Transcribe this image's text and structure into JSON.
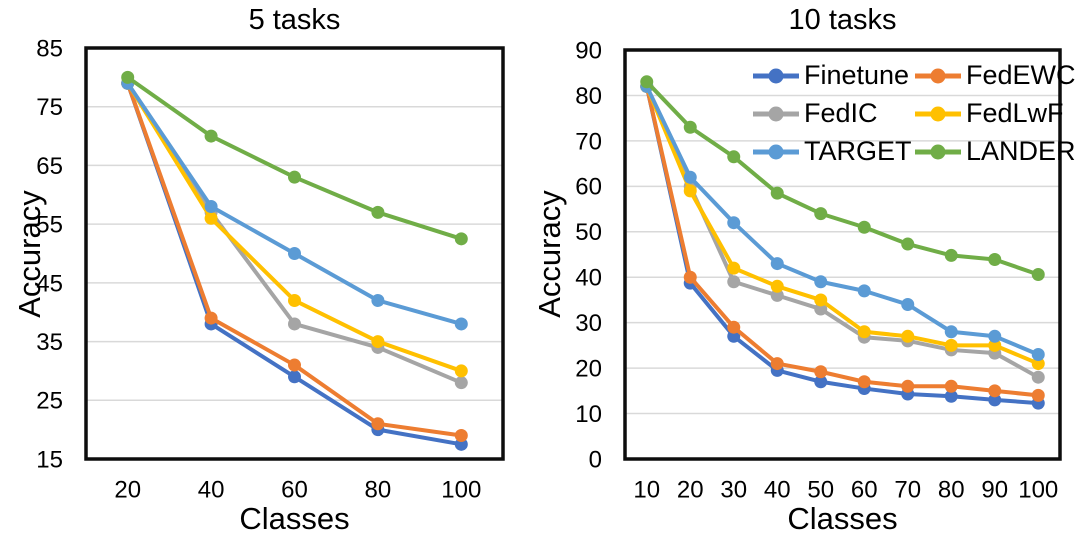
{
  "figure_title": "",
  "style": {
    "background": "#ffffff",
    "text_color": "#000000",
    "gridline_color": "#d9d9d9",
    "axis_border_color": "#0d0d0d"
  },
  "legend": {
    "columns": 2,
    "position": "top-right-inside-right-chart",
    "items": [
      "Finetune",
      "FedEWC",
      "FedIC",
      "FedLwF",
      "TARGET",
      "LANDER"
    ]
  },
  "chart_data": [
    {
      "type": "line",
      "title": "5 tasks",
      "xlabel": "Classes",
      "ylabel": "Accuracy",
      "grid": true,
      "legend_visible": false,
      "categories": [
        20,
        40,
        60,
        80,
        100
      ],
      "ylim": [
        15,
        85
      ],
      "yticks": [
        85,
        75,
        65,
        55,
        45,
        35,
        25,
        15
      ],
      "series": [
        {
          "name": "Finetune",
          "color": "#4472c4",
          "values": [
            79,
            38,
            29,
            20,
            17.5
          ]
        },
        {
          "name": "FedEWC",
          "color": "#ed7d31",
          "values": [
            79,
            39,
            31,
            21,
            19
          ]
        },
        {
          "name": "FedIC",
          "color": "#a5a5a5",
          "values": [
            79,
            57,
            38,
            34,
            28
          ]
        },
        {
          "name": "FedLwF",
          "color": "#ffc000",
          "values": [
            79,
            56,
            42,
            35,
            30
          ]
        },
        {
          "name": "TARGET",
          "color": "#5b9bd5",
          "values": [
            79,
            58,
            50,
            42,
            38
          ]
        },
        {
          "name": "LANDER",
          "color": "#70ad47",
          "values": [
            80,
            70,
            63,
            57,
            52.5
          ]
        }
      ]
    },
    {
      "type": "line",
      "title": "10 tasks",
      "xlabel": "Classes",
      "ylabel": "Accuracy",
      "grid": true,
      "legend_visible": true,
      "categories": [
        10,
        20,
        30,
        40,
        50,
        60,
        70,
        80,
        90,
        100
      ],
      "ylim": [
        0,
        90
      ],
      "yticks": [
        90,
        80,
        70,
        60,
        50,
        40,
        30,
        20,
        10,
        0
      ],
      "series": [
        {
          "name": "Finetune",
          "color": "#4472c4",
          "values": [
            82,
            38.7,
            27,
            19.5,
            17,
            15.5,
            14.3,
            13.8,
            13,
            12.3
          ]
        },
        {
          "name": "FedEWC",
          "color": "#ed7d31",
          "values": [
            82,
            40,
            29,
            21,
            19.2,
            17,
            16,
            16,
            15,
            14
          ]
        },
        {
          "name": "FedIC",
          "color": "#a5a5a5",
          "values": [
            82,
            60,
            39,
            36,
            33,
            26.8,
            26,
            24,
            23.3,
            18
          ]
        },
        {
          "name": "FedLwF",
          "color": "#ffc000",
          "values": [
            82,
            59,
            42,
            38,
            35,
            28,
            27,
            25,
            25,
            21
          ]
        },
        {
          "name": "TARGET",
          "color": "#5b9bd5",
          "values": [
            82,
            62,
            52,
            43,
            39,
            37,
            34,
            28,
            27,
            23
          ]
        },
        {
          "name": "LANDER",
          "color": "#70ad47",
          "values": [
            83,
            73,
            66.5,
            58.5,
            54,
            51,
            47.3,
            44.8,
            43.9,
            40.6
          ]
        }
      ]
    }
  ]
}
